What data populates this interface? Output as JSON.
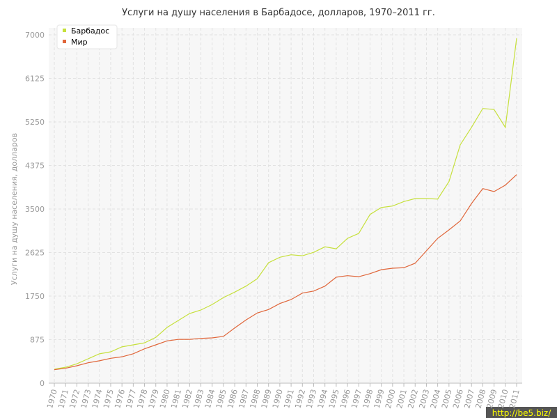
{
  "chart_data": {
    "type": "line",
    "title": "Услуги на душу населения в Барбадосе, долларов, 1970–2011 гг.",
    "y_label": "Услуги на душу населения, долларов",
    "watermark": "http://be5.biz/",
    "categories": [
      "1970",
      "1971",
      "1972",
      "1973",
      "1974",
      "1975",
      "1976",
      "1977",
      "1978",
      "1979",
      "1980",
      "1981",
      "1982",
      "1983",
      "1984",
      "1985",
      "1986",
      "1987",
      "1988",
      "1989",
      "1990",
      "1991",
      "1992",
      "1993",
      "1994",
      "1995",
      "1996",
      "1997",
      "1998",
      "1999",
      "2000",
      "2001",
      "2002",
      "2003",
      "2004",
      "2005",
      "2006",
      "2007",
      "2008",
      "2009",
      "2010",
      "2011"
    ],
    "series": [
      {
        "name": "Барбадос",
        "color": "#c6e03c",
        "values": [
          280,
          320,
          390,
          490,
          590,
          630,
          730,
          770,
          810,
          920,
          1120,
          1260,
          1400,
          1470,
          1580,
          1720,
          1830,
          1950,
          2100,
          2420,
          2530,
          2580,
          2560,
          2630,
          2740,
          2700,
          2910,
          3010,
          3390,
          3530,
          3560,
          3650,
          3710,
          3710,
          3700,
          4050,
          4790,
          5140,
          5520,
          5500,
          5140,
          6930
        ]
      },
      {
        "name": "Мир",
        "color": "#e0663a",
        "values": [
          270,
          300,
          350,
          410,
          450,
          500,
          530,
          590,
          690,
          770,
          850,
          880,
          880,
          900,
          910,
          940,
          1110,
          1270,
          1410,
          1480,
          1600,
          1680,
          1810,
          1850,
          1950,
          2130,
          2160,
          2140,
          2200,
          2280,
          2310,
          2320,
          2410,
          2660,
          2910,
          3080,
          3260,
          3610,
          3910,
          3850,
          3980,
          4190
        ]
      }
    ],
    "ylim": [
      0,
      7000
    ],
    "yticks": [
      0,
      875,
      1750,
      2625,
      3500,
      4375,
      5250,
      6125,
      7000
    ],
    "grid": true,
    "legend": "top-left"
  }
}
